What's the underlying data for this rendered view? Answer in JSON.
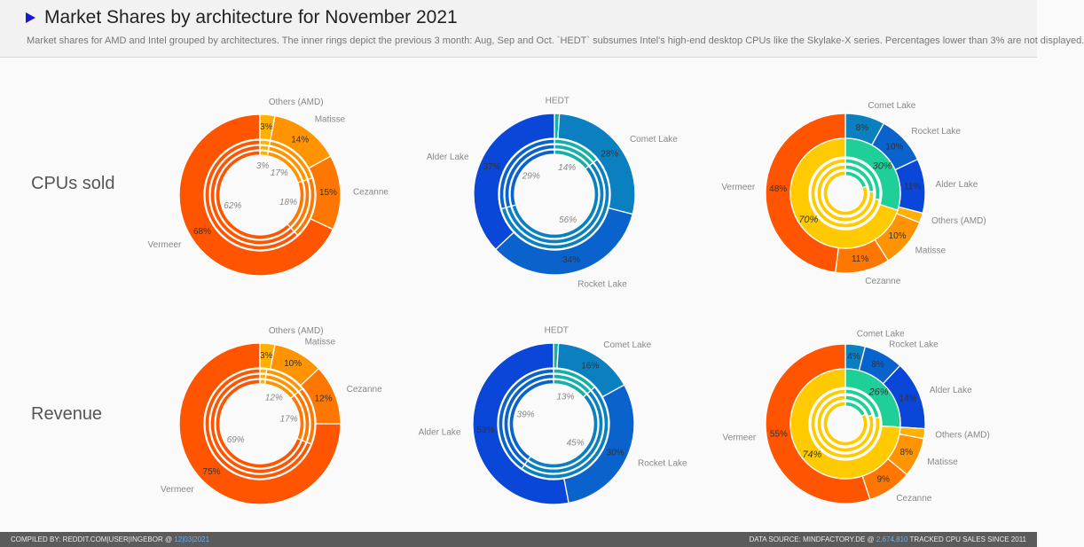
{
  "header": {
    "title": "Market Shares by architecture for November 2021",
    "subtitle": "Market shares for AMD and Intel grouped by architectures. The inner rings depict the previous 3 month: Aug, Sep and Oct. `HEDT` subsumes Intel's high-end desktop CPUs like the Skylake-X series. Percentages lower than 3% are not displayed."
  },
  "rows": [
    "CPUs sold",
    "Revenue"
  ],
  "footer": {
    "left_prefix": "Compiled by: reddit.com|user|ingebor @ ",
    "left_date": "12|03|2021",
    "right_prefix": "Data source: mindfactory.de @ ",
    "right_count": "2,674,810",
    "right_suffix": " tracked CPU sales since 2011"
  },
  "colors": {
    "Vermeer": "#ff5500",
    "Cezanne": "#ff7700",
    "Matisse": "#ff9400",
    "Others (AMD)": "#ffb000",
    "HEDT": "#16b0a6",
    "Comet Lake": "#0a80c0",
    "Rocket Lake": "#0a63cc",
    "Alder Lake": "#0a46d8",
    "Intel": "#1fcf98",
    "AMD": "#ffcb00"
  },
  "chart_data": [
    {
      "type": "pie",
      "row": "CPUs sold",
      "vendor": "AMD",
      "outer": [
        {
          "name": "Others (AMD)",
          "value": 3
        },
        {
          "name": "Matisse",
          "value": 14
        },
        {
          "name": "Cezanne",
          "value": 15
        },
        {
          "name": "Vermeer",
          "value": 68
        }
      ],
      "previous_months": [
        {
          "name": "Others (AMD)",
          "value": 3
        },
        {
          "name": "Matisse",
          "value": 17
        },
        {
          "name": "Cezanne",
          "value": 18
        },
        {
          "name": "Vermeer",
          "value": 62
        }
      ]
    },
    {
      "type": "pie",
      "row": "CPUs sold",
      "vendor": "Intel",
      "outer": [
        {
          "name": "HEDT",
          "value": 1
        },
        {
          "name": "Comet Lake",
          "value": 28
        },
        {
          "name": "Rocket Lake",
          "value": 34
        },
        {
          "name": "Alder Lake",
          "value": 37
        }
      ],
      "previous_months": [
        {
          "name": "HEDT",
          "value": 14
        },
        {
          "name": "Comet Lake",
          "value": 56
        },
        {
          "name": "Rocket Lake",
          "value": 29
        }
      ]
    },
    {
      "type": "pie",
      "row": "CPUs sold",
      "vendor": "Both",
      "outer": [
        {
          "name": "Comet Lake",
          "value": 8
        },
        {
          "name": "Rocket Lake",
          "value": 10
        },
        {
          "name": "Alder Lake",
          "value": 11
        },
        {
          "name": "Others (AMD)",
          "value": 2
        },
        {
          "name": "Matisse",
          "value": 10
        },
        {
          "name": "Cezanne",
          "value": 11
        },
        {
          "name": "Vermeer",
          "value": 48
        }
      ],
      "middle": [
        {
          "name": "Intel",
          "value": 30
        },
        {
          "name": "AMD",
          "value": 70
        }
      ],
      "previous_months_intel": [
        28,
        24,
        20
      ]
    },
    {
      "type": "pie",
      "row": "Revenue",
      "vendor": "AMD",
      "outer": [
        {
          "name": "Others (AMD)",
          "value": 3
        },
        {
          "name": "Matisse",
          "value": 10
        },
        {
          "name": "Cezanne",
          "value": 12
        },
        {
          "name": "Vermeer",
          "value": 75
        }
      ],
      "previous_months": [
        {
          "name": "Others (AMD)",
          "value": 2
        },
        {
          "name": "Matisse",
          "value": 12
        },
        {
          "name": "Cezanne",
          "value": 17
        },
        {
          "name": "Vermeer",
          "value": 69
        }
      ]
    },
    {
      "type": "pie",
      "row": "Revenue",
      "vendor": "Intel",
      "outer": [
        {
          "name": "HEDT",
          "value": 1
        },
        {
          "name": "Comet Lake",
          "value": 16
        },
        {
          "name": "Rocket Lake",
          "value": 30
        },
        {
          "name": "Alder Lake",
          "value": 53
        }
      ],
      "previous_months": [
        {
          "name": "HEDT",
          "value": 13
        },
        {
          "name": "Comet Lake",
          "value": 45
        },
        {
          "name": "Rocket Lake",
          "value": 39
        }
      ]
    },
    {
      "type": "pie",
      "row": "Revenue",
      "vendor": "Both",
      "outer": [
        {
          "name": "Comet Lake",
          "value": 4
        },
        {
          "name": "Rocket Lake",
          "value": 8
        },
        {
          "name": "Alder Lake",
          "value": 14
        },
        {
          "name": "Others (AMD)",
          "value": 2
        },
        {
          "name": "Matisse",
          "value": 8
        },
        {
          "name": "Cezanne",
          "value": 9
        },
        {
          "name": "Vermeer",
          "value": 55
        }
      ],
      "middle": [
        {
          "name": "Intel",
          "value": 26
        },
        {
          "name": "AMD",
          "value": 74
        }
      ],
      "previous_months_intel": [
        22,
        20,
        18
      ]
    }
  ]
}
